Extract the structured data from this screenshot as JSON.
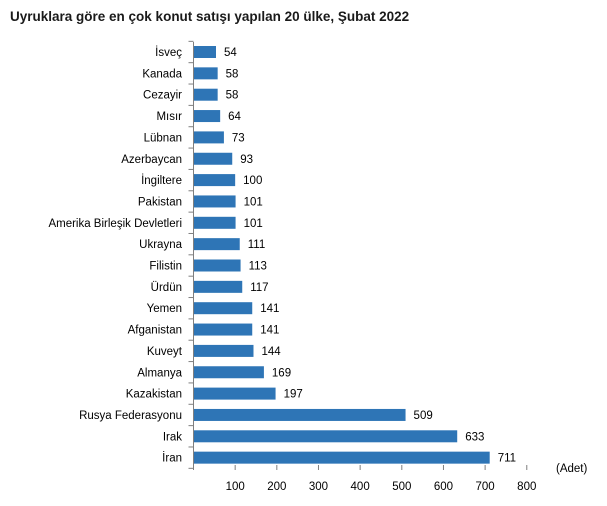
{
  "chart_data": {
    "type": "bar",
    "orientation": "horizontal",
    "title": "Uyruklara göre en çok konut satışı yapılan 20 ülke, Şubat 2022",
    "xlabel": "(Adet)",
    "ylabel": "",
    "categories": [
      "İsveç",
      "Kanada",
      "Cezayir",
      "Mısır",
      "Lübnan",
      "Azerbaycan",
      "İngiltere",
      "Pakistan",
      "Amerika Birleşik Devletleri",
      "Ukrayna",
      "Filistin",
      "Ürdün",
      "Yemen",
      "Afganistan",
      "Kuveyt",
      "Almanya",
      "Kazakistan",
      "Rusya Federasyonu",
      "Irak",
      "İran"
    ],
    "values": [
      54,
      58,
      58,
      64,
      73,
      93,
      100,
      101,
      101,
      111,
      113,
      117,
      141,
      141,
      144,
      169,
      197,
      509,
      633,
      711
    ],
    "xlim": [
      0,
      800
    ],
    "xticks": [
      100,
      200,
      300,
      400,
      500,
      600,
      700,
      800
    ],
    "grid": false,
    "legend": "none",
    "bar_color": "#2e75b6",
    "axis_color": "#7f7f7f"
  }
}
